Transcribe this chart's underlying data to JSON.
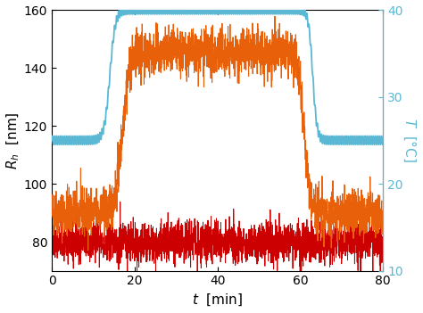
{
  "xlim": [
    0,
    80
  ],
  "ylim_left": [
    70,
    160
  ],
  "ylim_right": [
    10,
    40
  ],
  "xticks": [
    0,
    20,
    40,
    60,
    80
  ],
  "yticks_left": [
    80,
    100,
    120,
    140,
    160
  ],
  "yticks_right": [
    10,
    20,
    30,
    40
  ],
  "xlabel": "$t$  [min]",
  "ylabel_left": "$R_h$  [nm]",
  "ylabel_right": "$T$  [°C]",
  "color_orange": "#E8610A",
  "color_red": "#CC0000",
  "color_blue": "#5BB8D4",
  "noise_seed": 42,
  "n_points": 2400,
  "orange_base_low": 90,
  "orange_base_high": 145,
  "orange_rise_t": 17,
  "orange_rise_k": 1.2,
  "orange_fall_t": 61,
  "orange_fall_k": 1.5,
  "orange_noise_std": 4.0,
  "red_base": 80,
  "red_noise_std": 3.5,
  "blue_base_low": 25,
  "blue_base_high": 40,
  "blue_rise_t": 14,
  "blue_rise_k": 1.5,
  "blue_fall_t": 63,
  "blue_fall_k": 2.0,
  "blue_ripple_amp": 0.5,
  "blue_ripple_freq": 2.0
}
